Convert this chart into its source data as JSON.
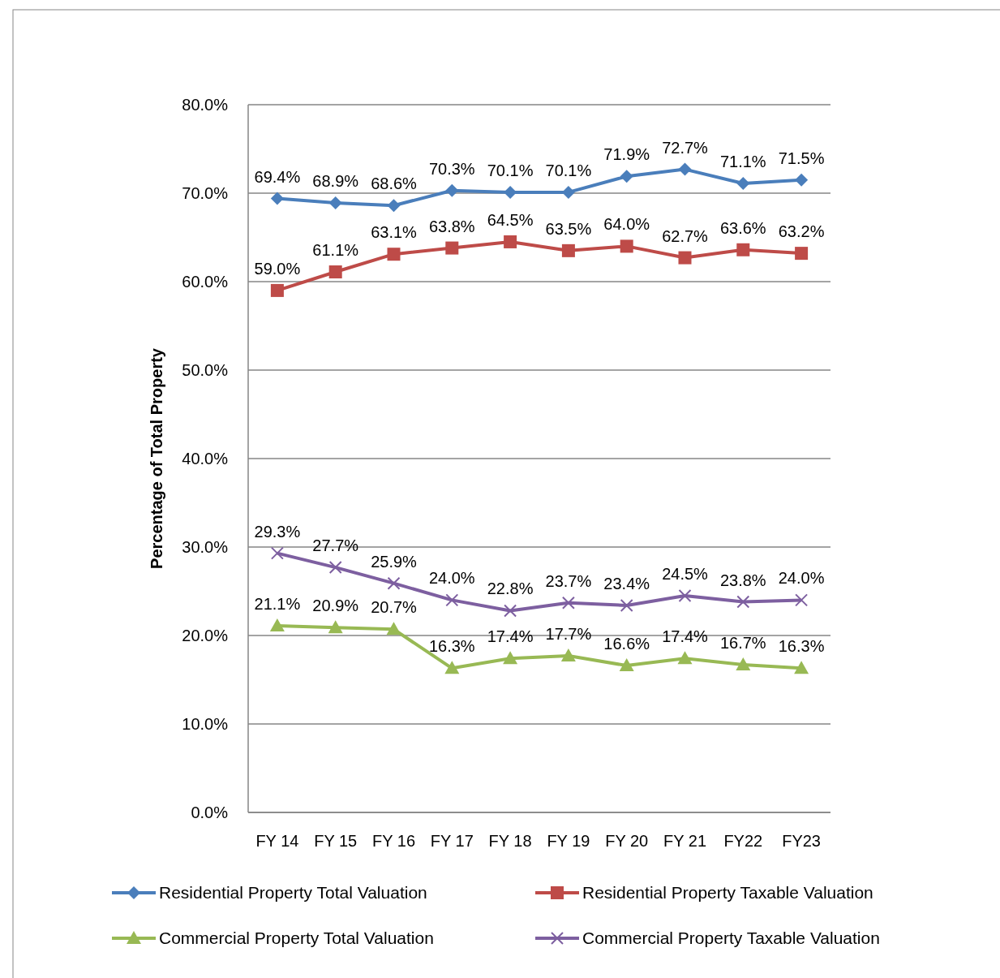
{
  "chart_data": {
    "type": "line",
    "ylabel": "Percentage of Total Property",
    "categories": [
      "FY 14",
      "FY 15",
      "FY 16",
      "FY 17",
      "FY 18",
      "FY 19",
      "FY 20",
      "FY 21",
      "FY22",
      "FY23"
    ],
    "ylim": [
      0,
      80
    ],
    "yticks": [
      {
        "value": 0,
        "label": "0.0%"
      },
      {
        "value": 10,
        "label": "10.0%"
      },
      {
        "value": 20,
        "label": "20.0%"
      },
      {
        "value": 30,
        "label": "30.0%"
      },
      {
        "value": 40,
        "label": "40.0%"
      },
      {
        "value": 50,
        "label": "50.0%"
      },
      {
        "value": 60,
        "label": "60.0%"
      },
      {
        "value": 70,
        "label": "70.0%"
      },
      {
        "value": 80,
        "label": "80.0%"
      }
    ],
    "grid": "y",
    "legend": "bottom",
    "series": [
      {
        "name": "Residential Property Total Valuation",
        "color": "#4a7ebb",
        "marker": "diamond",
        "values": [
          69.4,
          68.9,
          68.6,
          70.3,
          70.1,
          70.1,
          71.9,
          72.7,
          71.1,
          71.5
        ],
        "value_labels": [
          "69.4%",
          "68.9%",
          "68.6%",
          "70.3%",
          "70.1%",
          "70.1%",
          "71.9%",
          "72.7%",
          "71.1%",
          "71.5%"
        ]
      },
      {
        "name": "Residential Property Taxable Valuation",
        "color": "#be4b48",
        "marker": "square",
        "values": [
          59.0,
          61.1,
          63.1,
          63.8,
          64.5,
          63.5,
          64.0,
          62.7,
          63.6,
          63.2
        ],
        "value_labels": [
          "59.0%",
          "61.1%",
          "63.1%",
          "63.8%",
          "64.5%",
          "63.5%",
          "64.0%",
          "62.7%",
          "63.6%",
          "63.2%"
        ]
      },
      {
        "name": "Commercial Property Total Valuation",
        "color": "#98b954",
        "marker": "triangle",
        "values": [
          21.1,
          20.9,
          20.7,
          16.3,
          17.4,
          17.7,
          16.6,
          17.4,
          16.7,
          16.3
        ],
        "value_labels": [
          "21.1%",
          "20.9%",
          "20.7%",
          "16.3%",
          "17.4%",
          "17.7%",
          "16.6%",
          "17.4%",
          "16.7%",
          "16.3%"
        ]
      },
      {
        "name": "Commercial Property Taxable Valuation",
        "color": "#7d5fa0",
        "marker": "cross",
        "values": [
          29.3,
          27.7,
          25.9,
          24.0,
          22.8,
          23.7,
          23.4,
          24.5,
          23.8,
          24.0
        ],
        "value_labels": [
          "29.3%",
          "27.7%",
          "25.9%",
          "24.0%",
          "22.8%",
          "23.7%",
          "23.4%",
          "24.5%",
          "23.8%",
          "24.0%"
        ]
      }
    ]
  }
}
